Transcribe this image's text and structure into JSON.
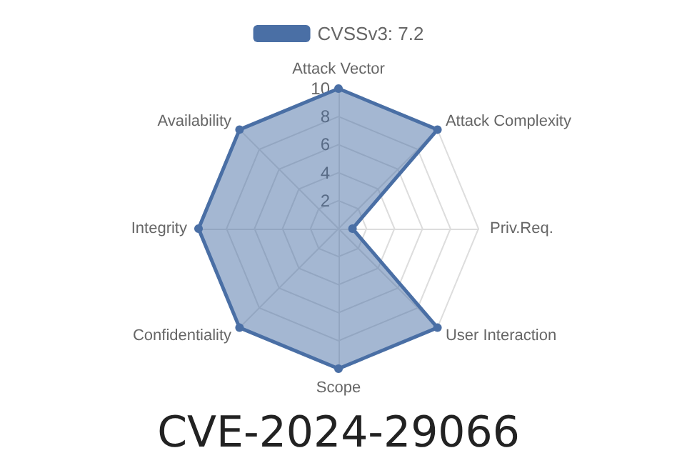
{
  "chart_data": {
    "type": "radar",
    "title": "CVE-2024-29066",
    "legend": "top",
    "categories": [
      "Attack Vector",
      "Attack Complexity",
      "Priv.Req.",
      "User Interaction",
      "Scope",
      "Confidentiality",
      "Integrity",
      "Availability"
    ],
    "series": [
      {
        "name": "CVSSv3: 7.2",
        "color": "#4a6fa5",
        "values": [
          10,
          10,
          1,
          10,
          10,
          10,
          10,
          10
        ]
      }
    ],
    "ylim": [
      0,
      10
    ],
    "yticks": [
      2,
      4,
      6,
      8,
      10
    ],
    "grid": true,
    "marker": "circle"
  }
}
